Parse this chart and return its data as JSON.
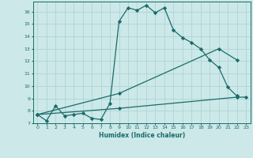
{
  "xlabel": "Humidex (Indice chaleur)",
  "bg_color": "#cce8e8",
  "grid_color": "#b0d4d4",
  "line_color": "#1a6b6b",
  "xlim": [
    -0.5,
    23.5
  ],
  "ylim": [
    7,
    16.8
  ],
  "yticks": [
    7,
    8,
    9,
    10,
    11,
    12,
    13,
    14,
    15,
    16
  ],
  "xticks": [
    0,
    1,
    2,
    3,
    4,
    5,
    6,
    7,
    8,
    9,
    10,
    11,
    12,
    13,
    14,
    15,
    16,
    17,
    18,
    19,
    20,
    21,
    22,
    23
  ],
  "line1_x": [
    0,
    1,
    2,
    3,
    4,
    5,
    6,
    7,
    8,
    9,
    10,
    11,
    12,
    13,
    14,
    15,
    16,
    17,
    18,
    19,
    20,
    21,
    22
  ],
  "line1_y": [
    7.7,
    7.2,
    8.4,
    7.6,
    7.7,
    7.8,
    7.4,
    7.3,
    8.6,
    15.2,
    16.3,
    16.1,
    16.5,
    15.9,
    16.3,
    14.5,
    13.9,
    13.5,
    13.0,
    12.1,
    11.5,
    9.9,
    9.2
  ],
  "line2_x": [
    0,
    9,
    20,
    22
  ],
  "line2_y": [
    7.7,
    9.4,
    13.0,
    12.1
  ],
  "line3_x": [
    0,
    9,
    22,
    23
  ],
  "line3_y": [
    7.7,
    8.2,
    9.1,
    9.1
  ]
}
